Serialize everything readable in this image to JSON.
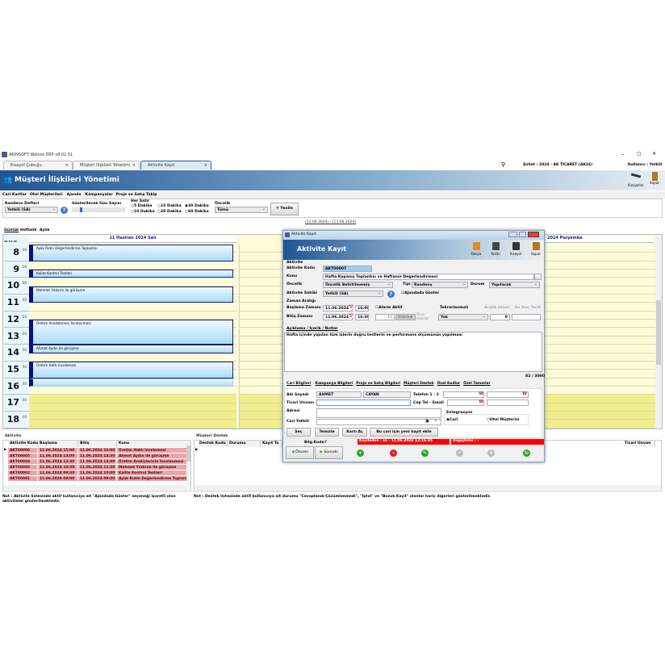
{
  "app": {
    "title": "AKINSOFT Wolvox ERP v9.02.01",
    "company": "Şirket : 2024 - AK TİCARET (AK24)",
    "user": "Kullanıcı : Yetkili"
  },
  "tabs": [
    {
      "label": "Kısayol Çubuğu"
    },
    {
      "label": "Müşteri İlişkileri Yönetimi"
    },
    {
      "label": "Aktivite Kayıt"
    }
  ],
  "header": {
    "title": "Müşteri İlişkileri Yönetimi",
    "shortcuts": "Kısayollar",
    "close": "Kapat"
  },
  "menu": [
    "Cari Kartlar",
    "Otel Müşterileri",
    "Ajanda",
    "Kampanyalar",
    "Proje ve Satış Takip"
  ],
  "filters": {
    "book_label": "Randevu Defteri",
    "book_value": "Yetkili (SA)",
    "days_label": "Gösterilecek Gün Sayısı",
    "row_label": "Her Satır",
    "row_options": [
      "5 Dakika",
      "15 Dakika",
      "30 Dakika",
      "10 Dakika",
      "20 Dakika",
      "60 Dakika"
    ],
    "row_selected": "30 Dakika",
    "priority_label": "Öncelik",
    "priority_value": "Tümü",
    "refresh": "Yenile"
  },
  "date_range": "(11.06.2024) - (13.06.2024)",
  "view_tabs": [
    "Günlük",
    "Haftalık",
    "Aylık"
  ],
  "calendar": {
    "day1": "11 Haziran 2024 Salı",
    "day3": "2024 Perşembe",
    "hours": [
      "8",
      "9",
      "10",
      "11",
      "12",
      "13",
      "14",
      "15",
      "16",
      "17",
      "18"
    ],
    "minute": "00",
    "events": [
      {
        "title": "Aylık Rutin Değerlendirme Toplantısı",
        "start": 8,
        "end": 9
      },
      {
        "title": "Kalite Kontrol Testleri",
        "start": 9.5,
        "end": 10
      },
      {
        "title": "Mehmet Yıldırım ile görüşme",
        "start": 10.5,
        "end": 11.5
      },
      {
        "title": "Üretim Analizlerinin İncelenmesi",
        "start": 12.5,
        "end": 14
      },
      {
        "title": "Ahmet Aydın ile görüşme",
        "start": 14,
        "end": 14.5
      },
      {
        "title": "Üretim Hattı incelemesi",
        "start": 15,
        "end": 16
      },
      {
        "title": "",
        "start": 16,
        "end": 16.5
      }
    ]
  },
  "dialog": {
    "title": "Aktivite Kayıt",
    "header": "Aktivite Kayıt",
    "tools": [
      "Dosya",
      "Yazdır",
      "Kısayol",
      "Kapat"
    ],
    "group_activity": "Aktivite",
    "code_label": "Aktivite Kodu",
    "code": "AKT00007",
    "subject_label": "Konu",
    "subject": "Hafta Kapanış Toplantısı ve Haftanın Değerlendirmesi",
    "priority_label": "Öncelik",
    "priority": "Öncelik Belirtilmemiş",
    "type_label": "Tipi",
    "type": "Randevu",
    "status_label": "Durum",
    "status": "Yapılacak",
    "owner_label": "Aktivite Sahibi",
    "owner": "Yetkili (SA)",
    "show_agenda": "Ajandada Göster",
    "group_time": "Zaman Aralığı",
    "start_label": "Başlama Zamanı",
    "start_date": "11.06.2024",
    "start_time": "16:00",
    "end_label": "Bitiş Zamanı",
    "end_date": "11.06.2024",
    "end_time": "16:30",
    "alarm": "Alarm Aktif",
    "alarm_value": "15",
    "alarm_unit": "Dakika",
    "alarm_before": "Önce Hatırlat",
    "repeat_label": "Tekrarlanmalı",
    "repeat": "Yok",
    "interval_label": "Aralık (Gün)",
    "interval": "0",
    "last_date_label": "En Son Tarih",
    "last_date": ". .",
    "notes_label": "Açıklama / İçerik / Notlar",
    "notes": "Hafta içinde yapılan tüm işlerin doğru testlerin ve performans ölçümünün yapılması",
    "counter": "82 / 3000",
    "subtabs": [
      "Cari Bilgileri",
      "Kampanya Bilgileri",
      "Proje ve Satış Bilgileri",
      "Müşteri Destek",
      "Özel Kodlar",
      "Özel Tanımlar"
    ],
    "name_label": "Adı Soyadı",
    "first": "AHMET",
    "last": "CAYAN",
    "phone_label": "Telefon 1 - 2",
    "title_label": "Ticari Unvanı",
    "mobile_label": "Cep Tel - Email",
    "address_label": "Adresi",
    "contact_label": "Cari Yetkili",
    "integration": "Entegrasyon",
    "int_cari": "Cari",
    "int_hotel": "Otel Müşterisi",
    "buttons": [
      "Seç",
      "Temizle",
      "Kartı Aç",
      "Bu cari için yeni kayıt ekle"
    ],
    "info_label": "Bilg.Kodu",
    "info_value": "7",
    "saved_by": "Kaydeden : sa - 11.06.2024 12:16:35",
    "changed_by": "Değiştiren : -",
    "prev": "Önceki",
    "next": "Sonraki"
  },
  "activity": {
    "title": "Aktivite",
    "columns": [
      "Aktivite Kodu",
      "Başlama",
      "Bitiş",
      "Konu"
    ],
    "rows": [
      [
        "AKT00006",
        "11.06.2024 15:00",
        "11.06.2024 16:00",
        "Üretim Hattı incelemesi"
      ],
      [
        "AKT00005",
        "11.06.2024 14:00",
        "11.06.2024 14:30",
        "Ahmet Aydın ile görüşme"
      ],
      [
        "AKT00004",
        "11.06.2024 12:30",
        "11.06.2024 14:00",
        "Üretim Analizlerinin İncelenmesi"
      ],
      [
        "AKT00003",
        "11.06.2024 10:30",
        "11.06.2024 11:30",
        "Mehmet Yıldırım ile görüşme"
      ],
      [
        "AKT00002",
        "11.06.2024 09:30",
        "11.06.2024 10:00",
        "Kalite Kontrol Testleri"
      ],
      [
        "AKT00001",
        "11.06.2024 08:00",
        "11.06.2024 09:00",
        "Aylık Rutin Değerlendirme Toplantısı"
      ]
    ],
    "note": "Not : Aktivite listesinde aktif kullanıcıya ait \"Ajandada Göster\" seçeneği işaretli olan aktiviteler gösterilmektedir."
  },
  "support": {
    "title": "Müşteri Destek",
    "columns": [
      "Destek Kodu",
      "Durumu",
      "Kayıt Ta",
      "Ticari Unvan"
    ],
    "note": "Not : Destek listesinde aktif kullanıcıya ait durumu \"Cevaplandı-Çözümlenmedi\", \"İptal\" ve \"Bozuk Kayıt\" olanlar hariç diğerleri gösterilmektedir."
  },
  "colors": {
    "header_blue": "#2a5e98",
    "event_border": "#0c0c88",
    "row_pink": "#eaa6ab",
    "status_red": "#ff0000"
  }
}
